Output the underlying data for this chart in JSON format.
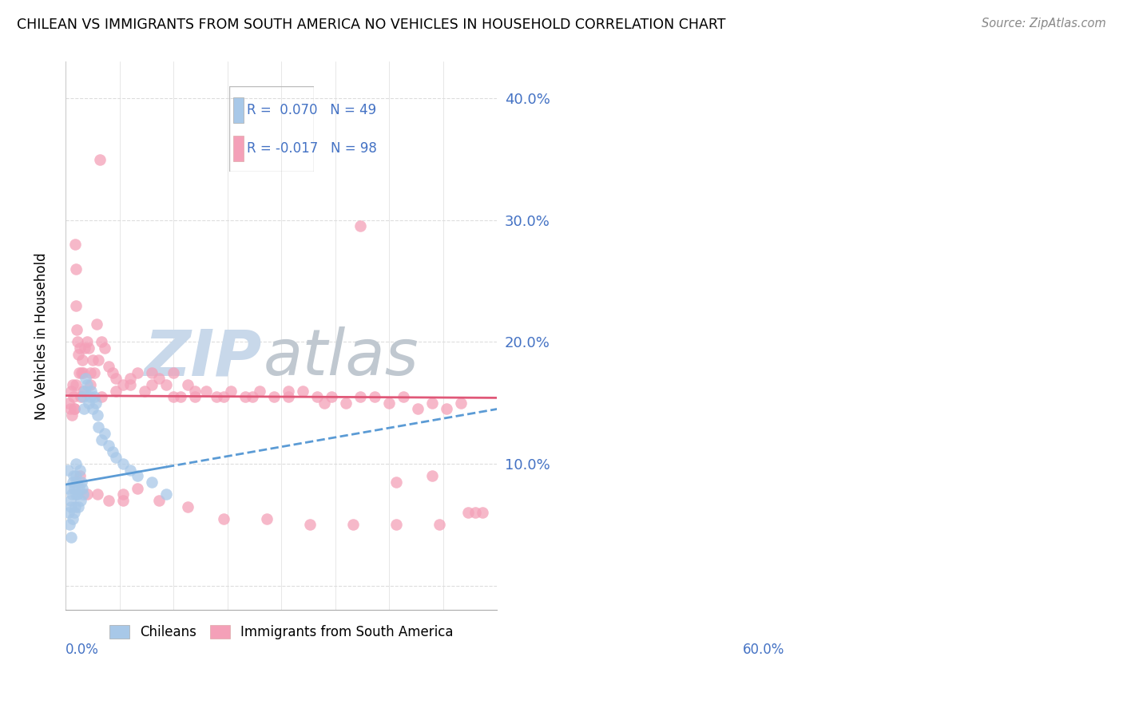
{
  "title": "CHILEAN VS IMMIGRANTS FROM SOUTH AMERICA NO VEHICLES IN HOUSEHOLD CORRELATION CHART",
  "source": "Source: ZipAtlas.com",
  "ylabel": "No Vehicles in Household",
  "xlim": [
    0.0,
    0.6
  ],
  "ylim": [
    -0.02,
    0.43
  ],
  "yticks": [
    0.0,
    0.1,
    0.2,
    0.3,
    0.4
  ],
  "ytick_labels": [
    "",
    "10.0%",
    "20.0%",
    "30.0%",
    "40.0%"
  ],
  "color_blue": "#A8C8E8",
  "color_pink": "#F4A0B8",
  "color_blue_line": "#5B9BD5",
  "color_pink_line": "#E05878",
  "color_blue_text": "#4472C4",
  "watermark_zip_color": "#C8D8EA",
  "watermark_atlas_color": "#C0C8D0",
  "chileans_x": [
    0.003,
    0.005,
    0.005,
    0.006,
    0.007,
    0.008,
    0.008,
    0.009,
    0.01,
    0.01,
    0.011,
    0.012,
    0.012,
    0.013,
    0.014,
    0.015,
    0.015,
    0.016,
    0.017,
    0.018,
    0.019,
    0.02,
    0.021,
    0.022,
    0.023,
    0.024,
    0.025,
    0.026,
    0.027,
    0.028,
    0.03,
    0.032,
    0.034,
    0.036,
    0.038,
    0.04,
    0.042,
    0.044,
    0.046,
    0.05,
    0.055,
    0.06,
    0.065,
    0.07,
    0.08,
    0.09,
    0.1,
    0.12,
    0.14
  ],
  "chileans_y": [
    0.095,
    0.08,
    0.06,
    0.05,
    0.07,
    0.065,
    0.04,
    0.075,
    0.055,
    0.085,
    0.09,
    0.06,
    0.08,
    0.065,
    0.075,
    0.09,
    0.1,
    0.085,
    0.075,
    0.065,
    0.08,
    0.095,
    0.07,
    0.085,
    0.08,
    0.075,
    0.155,
    0.145,
    0.16,
    0.17,
    0.165,
    0.15,
    0.155,
    0.16,
    0.145,
    0.155,
    0.15,
    0.14,
    0.13,
    0.12,
    0.125,
    0.115,
    0.11,
    0.105,
    0.1,
    0.095,
    0.09,
    0.085,
    0.075
  ],
  "immigrants_x": [
    0.005,
    0.007,
    0.008,
    0.009,
    0.01,
    0.011,
    0.012,
    0.013,
    0.014,
    0.015,
    0.016,
    0.017,
    0.018,
    0.019,
    0.02,
    0.021,
    0.022,
    0.023,
    0.025,
    0.027,
    0.03,
    0.032,
    0.035,
    0.038,
    0.04,
    0.043,
    0.046,
    0.05,
    0.055,
    0.06,
    0.065,
    0.07,
    0.08,
    0.09,
    0.1,
    0.11,
    0.12,
    0.13,
    0.14,
    0.15,
    0.16,
    0.17,
    0.18,
    0.195,
    0.21,
    0.23,
    0.25,
    0.27,
    0.29,
    0.31,
    0.33,
    0.35,
    0.37,
    0.39,
    0.41,
    0.43,
    0.45,
    0.47,
    0.49,
    0.51,
    0.53,
    0.55,
    0.57,
    0.015,
    0.025,
    0.035,
    0.05,
    0.07,
    0.09,
    0.12,
    0.15,
    0.18,
    0.22,
    0.26,
    0.31,
    0.36,
    0.41,
    0.46,
    0.51,
    0.56,
    0.012,
    0.02,
    0.03,
    0.045,
    0.06,
    0.08,
    0.1,
    0.13,
    0.17,
    0.22,
    0.28,
    0.34,
    0.4,
    0.46,
    0.52,
    0.048,
    0.08,
    0.58
  ],
  "immigrants_y": [
    0.15,
    0.145,
    0.16,
    0.14,
    0.165,
    0.155,
    0.145,
    0.28,
    0.26,
    0.23,
    0.21,
    0.2,
    0.19,
    0.175,
    0.195,
    0.155,
    0.175,
    0.185,
    0.175,
    0.195,
    0.2,
    0.195,
    0.175,
    0.185,
    0.175,
    0.215,
    0.185,
    0.2,
    0.195,
    0.18,
    0.175,
    0.17,
    0.165,
    0.165,
    0.175,
    0.16,
    0.175,
    0.17,
    0.165,
    0.175,
    0.155,
    0.165,
    0.155,
    0.16,
    0.155,
    0.16,
    0.155,
    0.16,
    0.155,
    0.155,
    0.16,
    0.155,
    0.155,
    0.15,
    0.155,
    0.155,
    0.15,
    0.155,
    0.145,
    0.15,
    0.145,
    0.15,
    0.06,
    0.165,
    0.16,
    0.165,
    0.155,
    0.16,
    0.17,
    0.165,
    0.155,
    0.16,
    0.155,
    0.155,
    0.16,
    0.15,
    0.295,
    0.085,
    0.09,
    0.06,
    0.145,
    0.09,
    0.075,
    0.075,
    0.07,
    0.075,
    0.08,
    0.07,
    0.065,
    0.055,
    0.055,
    0.05,
    0.05,
    0.05,
    0.05,
    0.35,
    0.07,
    0.06
  ]
}
